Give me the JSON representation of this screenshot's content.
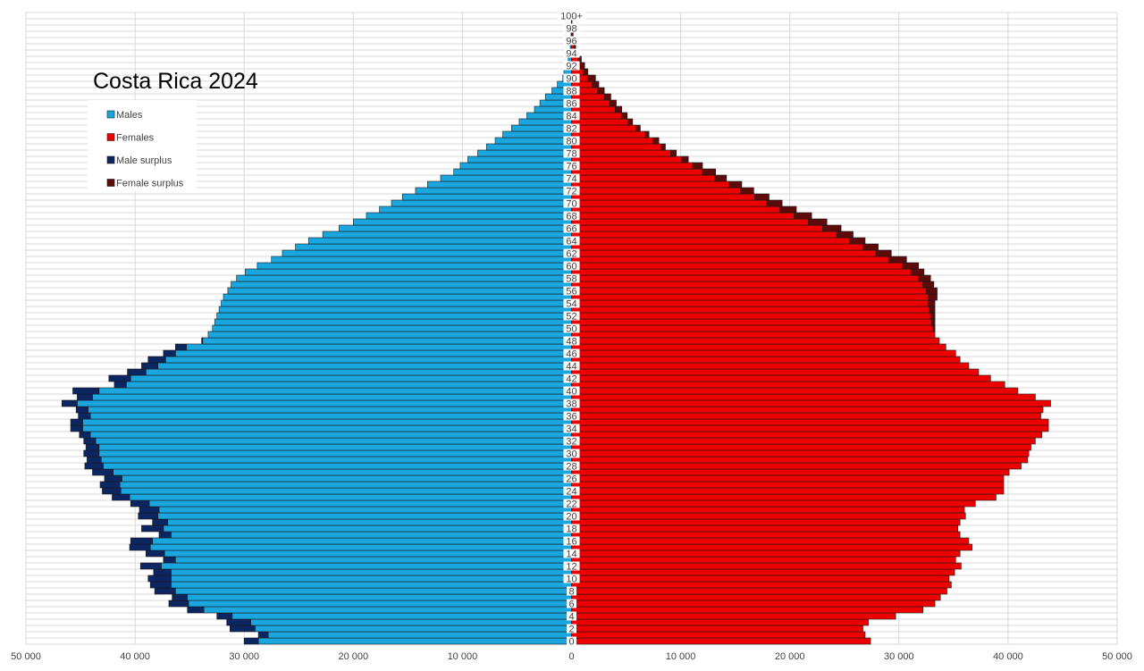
{
  "chart_data": {
    "type": "bar",
    "subtype": "population-pyramid",
    "title": "Costa Rica 2024",
    "xlim": [
      -50000,
      50000
    ],
    "x_ticks": [
      -50000,
      -40000,
      -30000,
      -20000,
      -10000,
      0,
      10000,
      20000,
      30000,
      40000,
      50000
    ],
    "x_tick_labels": [
      "50 000",
      "40 000",
      "30 000",
      "20 000",
      "10 000",
      "0",
      "10 000",
      "20 000",
      "30 000",
      "40 000",
      "50 000"
    ],
    "ages": [
      "0",
      "1",
      "2",
      "3",
      "4",
      "5",
      "6",
      "7",
      "8",
      "9",
      "10",
      "11",
      "12",
      "13",
      "14",
      "15",
      "16",
      "17",
      "18",
      "19",
      "20",
      "21",
      "22",
      "23",
      "24",
      "25",
      "26",
      "27",
      "28",
      "29",
      "30",
      "31",
      "32",
      "33",
      "34",
      "35",
      "36",
      "37",
      "38",
      "39",
      "40",
      "41",
      "42",
      "43",
      "44",
      "45",
      "46",
      "47",
      "48",
      "49",
      "50",
      "51",
      "52",
      "53",
      "54",
      "55",
      "56",
      "57",
      "58",
      "59",
      "60",
      "61",
      "62",
      "63",
      "64",
      "65",
      "66",
      "67",
      "68",
      "69",
      "70",
      "71",
      "72",
      "73",
      "74",
      "75",
      "76",
      "77",
      "78",
      "79",
      "80",
      "81",
      "82",
      "83",
      "84",
      "85",
      "86",
      "87",
      "88",
      "89",
      "90",
      "91",
      "92",
      "93",
      "94",
      "95",
      "96",
      "97",
      "98",
      "99",
      "100+"
    ],
    "age_tick_labels": [
      "0",
      "2",
      "4",
      "6",
      "8",
      "10",
      "12",
      "14",
      "16",
      "18",
      "20",
      "22",
      "24",
      "26",
      "28",
      "30",
      "32",
      "34",
      "36",
      "38",
      "40",
      "42",
      "44",
      "46",
      "48",
      "50",
      "52",
      "54",
      "56",
      "58",
      "60",
      "62",
      "64",
      "66",
      "68",
      "70",
      "72",
      "74",
      "76",
      "78",
      "80",
      "82",
      "84",
      "86",
      "88",
      "90",
      "92",
      "94",
      "96",
      "98",
      "100+"
    ],
    "series": [
      {
        "name": "Males",
        "color": "#1aa7e0",
        "values": [
          28700,
          27800,
          29000,
          29400,
          31100,
          33700,
          35100,
          35200,
          36300,
          36700,
          36700,
          36700,
          37600,
          36300,
          37300,
          38600,
          38400,
          36700,
          37400,
          37000,
          37900,
          37800,
          38700,
          40500,
          41300,
          41400,
          41200,
          42000,
          42900,
          43100,
          43300,
          43300,
          43600,
          44100,
          44800,
          44800,
          44100,
          44300,
          45300,
          43900,
          43300,
          40800,
          40400,
          39000,
          37900,
          37200,
          36300,
          35300,
          33800,
          33300,
          32900,
          32700,
          32500,
          32300,
          32100,
          31900,
          31500,
          31200,
          30700,
          29900,
          28800,
          27500,
          26500,
          25300,
          24100,
          22800,
          21300,
          20000,
          18800,
          17600,
          16500,
          15500,
          14300,
          13200,
          12000,
          10800,
          10200,
          9500,
          8600,
          7800,
          7000,
          6300,
          5500,
          4800,
          4100,
          3400,
          2900,
          2400,
          1800,
          1300,
          800,
          700,
          400,
          300,
          200,
          120,
          80,
          50,
          30,
          20,
          30
        ]
      },
      {
        "name": "Females",
        "color": "#ee0000",
        "values": [
          27400,
          26900,
          26700,
          27200,
          29700,
          32200,
          33300,
          33800,
          34400,
          34800,
          34600,
          35100,
          35700,
          35200,
          35600,
          36700,
          36400,
          35600,
          35400,
          35600,
          36100,
          36000,
          37000,
          38900,
          39600,
          39600,
          39600,
          40100,
          41200,
          41800,
          41900,
          42100,
          42500,
          43100,
          43700,
          43700,
          43000,
          43200,
          43900,
          42500,
          40900,
          39700,
          38400,
          37300,
          36400,
          35600,
          35200,
          34300,
          33700,
          33300,
          33100,
          33000,
          32900,
          32800,
          32700,
          32700,
          32500,
          32200,
          31800,
          31100,
          30300,
          29100,
          27900,
          26700,
          25500,
          24300,
          23000,
          21700,
          20400,
          19100,
          17900,
          16800,
          15500,
          14400,
          13100,
          12000,
          11100,
          10100,
          9100,
          8200,
          7500,
          6700,
          5900,
          5200,
          4600,
          4000,
          3500,
          3000,
          2400,
          1900,
          1500,
          1100,
          800,
          600,
          400,
          250,
          160,
          100,
          60,
          30,
          40
        ]
      },
      {
        "name": "Male surplus",
        "color": "#0c2661",
        "values": [
          1300,
          900,
          2300,
          2200,
          1400,
          1500,
          1800,
          1400,
          1900,
          1900,
          2100,
          1600,
          1900,
          1100,
          1700,
          1900,
          2000,
          1100,
          2000,
          1400,
          1800,
          1800,
          1700,
          1600,
          1700,
          1800,
          1600,
          1900,
          1700,
          1300,
          1400,
          1200,
          1100,
          1000,
          1100,
          1100,
          1100,
          1100,
          1400,
          1400,
          2400,
          1100,
          2000,
          1700,
          1500,
          1600,
          1100,
          1000,
          100,
          0,
          0,
          0,
          0,
          0,
          0,
          0,
          0,
          0,
          0,
          0,
          0,
          0,
          0,
          0,
          0,
          0,
          0,
          0,
          0,
          0,
          0,
          0,
          0,
          0,
          0,
          0,
          0,
          0,
          0,
          0,
          0,
          0,
          0,
          0,
          0,
          0,
          0,
          0,
          0,
          0,
          0,
          0,
          0,
          0,
          0,
          0,
          0,
          0,
          0,
          0,
          0
        ]
      },
      {
        "name": "Female surplus",
        "color": "#5c0a0a",
        "values": [
          0,
          0,
          0,
          0,
          0,
          0,
          0,
          0,
          0,
          0,
          0,
          0,
          0,
          0,
          0,
          0,
          0,
          0,
          0,
          0,
          0,
          0,
          0,
          0,
          0,
          0,
          0,
          0,
          0,
          0,
          0,
          0,
          0,
          0,
          0,
          0,
          0,
          0,
          0,
          0,
          0,
          0,
          0,
          0,
          0,
          0,
          0,
          0,
          0,
          0,
          200,
          300,
          400,
          500,
          600,
          800,
          1000,
          1000,
          1100,
          1200,
          1500,
          1600,
          1400,
          1400,
          1400,
          1500,
          1700,
          1700,
          1600,
          1500,
          1400,
          1300,
          1200,
          1200,
          1100,
          1200,
          900,
          600,
          500,
          400,
          500,
          400,
          400,
          400,
          500,
          600,
          600,
          600,
          600,
          600,
          700,
          400,
          400,
          300,
          200,
          130,
          80,
          50,
          30,
          10,
          10
        ]
      }
    ],
    "legend": {
      "position": "top-left",
      "entries": [
        "Males",
        "Females",
        "Male surplus",
        "Female surplus"
      ]
    },
    "grid": true
  }
}
